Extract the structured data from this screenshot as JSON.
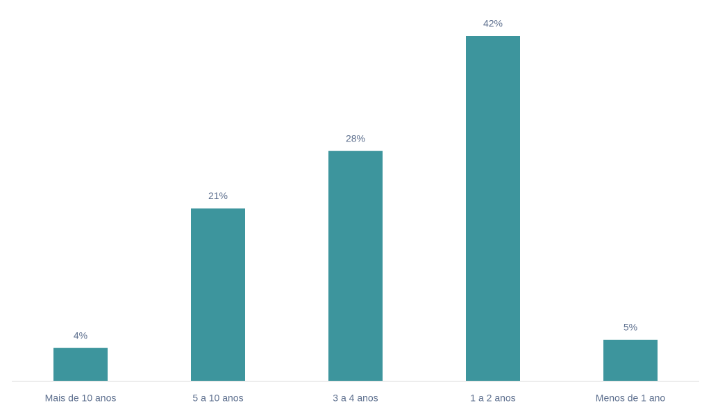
{
  "chart_data": {
    "type": "bar",
    "categories": [
      "Mais de 10 anos",
      "5 a 10 anos",
      "3 a 4 anos",
      "1 a 2 anos",
      "Menos de 1 ano"
    ],
    "values": [
      4,
      21,
      28,
      42,
      5
    ],
    "value_labels": [
      "4%",
      "21%",
      "28%",
      "42%",
      "5%"
    ],
    "color": "#3d959d"
  }
}
